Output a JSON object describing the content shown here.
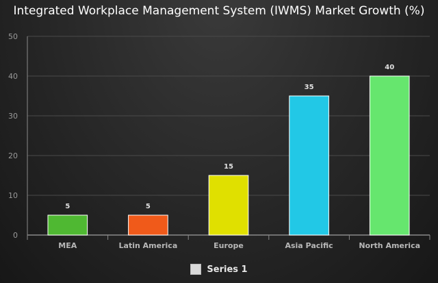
{
  "chart_data": {
    "type": "bar",
    "title": "Integrated Workplace Management System (IWMS) Market Growth (%)",
    "categories": [
      "MEA",
      "Latin America",
      "Europe",
      "Asia Pacific",
      "North America"
    ],
    "series": [
      {
        "name": "Series 1",
        "values": [
          5,
          5,
          15,
          35,
          40
        ]
      }
    ],
    "colors": [
      "#4fb832",
      "#f05a1a",
      "#e0e000",
      "#22c8e6",
      "#66e66e"
    ],
    "ylim": [
      0,
      50
    ],
    "yticks": [
      "0",
      "10",
      "20",
      "30",
      "40",
      "50"
    ],
    "grid": true,
    "legend_position": "bottom",
    "data_labels": true
  }
}
